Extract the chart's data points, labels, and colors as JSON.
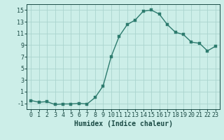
{
  "x": [
    0,
    1,
    2,
    3,
    4,
    5,
    6,
    7,
    8,
    9,
    10,
    11,
    12,
    13,
    14,
    15,
    16,
    17,
    18,
    19,
    20,
    21,
    22,
    23
  ],
  "y": [
    -0.5,
    -0.8,
    -0.7,
    -1.2,
    -1.1,
    -1.1,
    -1.0,
    -1.1,
    0.0,
    2.0,
    7.0,
    10.5,
    12.5,
    13.3,
    14.8,
    15.0,
    14.3,
    12.5,
    11.2,
    10.8,
    9.5,
    9.3,
    8.0,
    8.8
  ],
  "line_color": "#2d7b6e",
  "marker_color": "#2d7b6e",
  "bg_color": "#cceee8",
  "grid_color": "#aad4ce",
  "xlabel": "Humidex (Indice chaleur)",
  "xlim": [
    -0.5,
    23.5
  ],
  "ylim": [
    -2.0,
    16.0
  ],
  "yticks": [
    -1,
    1,
    3,
    5,
    7,
    9,
    11,
    13,
    15
  ],
  "xticks": [
    0,
    1,
    2,
    3,
    4,
    5,
    6,
    7,
    8,
    9,
    10,
    11,
    12,
    13,
    14,
    15,
    16,
    17,
    18,
    19,
    20,
    21,
    22,
    23
  ],
  "xtick_labels": [
    "0",
    "1",
    "2",
    "3",
    "4",
    "5",
    "6",
    "7",
    "8",
    "9",
    "10",
    "11",
    "12",
    "13",
    "14",
    "15",
    "16",
    "17",
    "18",
    "19",
    "20",
    "21",
    "22",
    "23"
  ],
  "ytick_labels": [
    "-1",
    "1",
    "3",
    "5",
    "7",
    "9",
    "11",
    "13",
    "15"
  ],
  "font_color": "#1a4a44",
  "xlabel_fontsize": 7,
  "tick_fontsize": 6,
  "linewidth": 1.0,
  "markersize": 2.5
}
